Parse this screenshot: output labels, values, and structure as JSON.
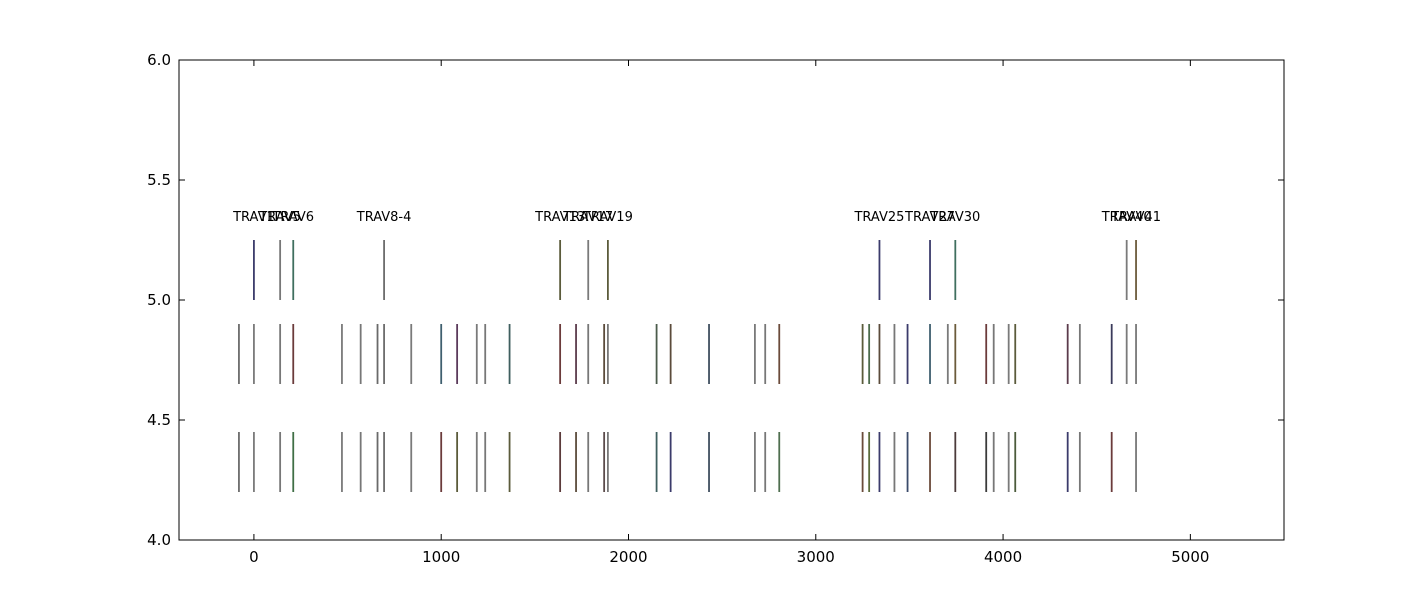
{
  "chart_data": {
    "type": "scatter",
    "title": "",
    "xlabel": "",
    "ylabel": "",
    "xlim": [
      -400,
      5500
    ],
    "ylim": [
      4.0,
      6.0
    ],
    "xticks": [
      0,
      1000,
      2000,
      3000,
      4000,
      5000
    ],
    "xtick_labels": [
      "0",
      "1000",
      "2000",
      "3000",
      "4000",
      "5000"
    ],
    "yticks": [
      4.0,
      4.5,
      5.0,
      5.5,
      6.0
    ],
    "ytick_labels": [
      "4.0",
      "4.5",
      "5.0",
      "5.5",
      "6.0"
    ],
    "grid": false,
    "mark_style": "vertical line segments (eventplot)",
    "rows": [
      {
        "center": 4.325,
        "span": [
          4.2,
          4.45
        ],
        "positions": [
          -80,
          0,
          140,
          210,
          470,
          570,
          660,
          695,
          840,
          1000,
          1085,
          1190,
          1235,
          1365,
          1635,
          1720,
          1785,
          1870,
          1890,
          2150,
          2225,
          2430,
          2675,
          2730,
          2805,
          3250,
          3285,
          3340,
          3420,
          3490,
          3610,
          3745,
          3910,
          3950,
          4030,
          4065,
          4345,
          4410,
          4580,
          4710
        ],
        "colors": [
          "#6b6b6b",
          "#7a7a7a",
          "#777777",
          "#3f6f45",
          "#7a7a7a",
          "#777777",
          "#6a6a6a",
          "#6b6b6b",
          "#7a7a7a",
          "#6b3b3b",
          "#5b5b3b",
          "#7a7a7a",
          "#777777",
          "#5b5b3b",
          "#5b3b3b",
          "#5b4b3b",
          "#777777",
          "#5b4b4b",
          "#777777",
          "#3f5f5f",
          "#3b3b6b",
          "#3f4f5f",
          "#7a7a7a",
          "#777777",
          "#4f6f4f",
          "#6b4b3b",
          "#5b6b3b",
          "#3b3b6b",
          "#777777",
          "#3b4b6b",
          "#6b4b3b",
          "#4b3b3b",
          "#3b3b3b",
          "#777777",
          "#7a7a7a",
          "#4b5b3b",
          "#3b3b6b",
          "#777777",
          "#6b3b3b",
          "#777777"
        ]
      },
      {
        "center": 4.775,
        "span": [
          4.65,
          4.9
        ],
        "positions": [
          -80,
          0,
          140,
          210,
          470,
          570,
          660,
          695,
          840,
          1000,
          1085,
          1190,
          1235,
          1365,
          1635,
          1720,
          1785,
          1870,
          1890,
          2150,
          2225,
          2430,
          2675,
          2730,
          2805,
          3250,
          3285,
          3340,
          3420,
          3490,
          3610,
          3705,
          3745,
          3910,
          3950,
          4030,
          4065,
          4345,
          4410,
          4580,
          4660,
          4710
        ],
        "colors": [
          "#6b6b6b",
          "#7a7a7a",
          "#777777",
          "#6b3b3b",
          "#7a7a7a",
          "#777777",
          "#6a6a6a",
          "#6b6b6b",
          "#7a7a7a",
          "#3f5f6f",
          "#5b3b5b",
          "#7a7a7a",
          "#777777",
          "#3f5f5f",
          "#6b3b3b",
          "#5b3b4b",
          "#777777",
          "#5b4b3b",
          "#777777",
          "#4b5b4b",
          "#5b4b3b",
          "#3f4f5f",
          "#7a7a7a",
          "#777777",
          "#6b4b3b",
          "#5b5b3b",
          "#4b6b4b",
          "#5b4b3b",
          "#777777",
          "#3b3b6b",
          "#3f5f6f",
          "#7a7a7a",
          "#6b5b3b",
          "#6b3b3b",
          "#777777",
          "#7a7a7a",
          "#5b5b3b",
          "#5b3b4b",
          "#777777",
          "#3b3b5b",
          "#7a7a7a",
          "#777777"
        ]
      },
      {
        "center": 5.125,
        "span": [
          5.0,
          5.25
        ],
        "positions": [
          0,
          140,
          210,
          695,
          1635,
          1785,
          1890,
          3340,
          3610,
          3745,
          4660,
          4710
        ],
        "colors": [
          "#3b3b6b",
          "#777777",
          "#3f6f5f",
          "#6b6b6b",
          "#5b5b3b",
          "#7a7a7a",
          "#5b5b3b",
          "#3b3b6b",
          "#3b3b6b",
          "#3f6f5f",
          "#7a7a7a",
          "#6b5b3b"
        ]
      }
    ],
    "labels": [
      {
        "text": "TRAV1",
        "x": 0
      },
      {
        "text": "TRAV5",
        "x": 140
      },
      {
        "text": "TRAV6",
        "x": 210
      },
      {
        "text": "TRAV8-4",
        "x": 695
      },
      {
        "text": "TRAV13",
        "x": 1635
      },
      {
        "text": "TRAV17",
        "x": 1785
      },
      {
        "text": "TRAV19",
        "x": 1890
      },
      {
        "text": "TRAV25",
        "x": 3340
      },
      {
        "text": "TRAV27",
        "x": 3610
      },
      {
        "text": "TRAV30",
        "x": 3745
      },
      {
        "text": "TRAV40",
        "x": 4660
      },
      {
        "text": "TRAV41",
        "x": 4710
      }
    ],
    "label_y": 5.33
  }
}
